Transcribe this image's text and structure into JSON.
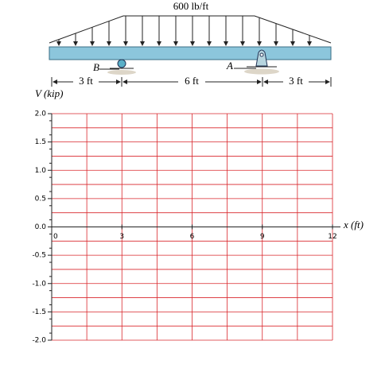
{
  "load": {
    "label": "600 lb/ft"
  },
  "supports": {
    "B": "B",
    "A": "A"
  },
  "dimensions": [
    "3 ft",
    "6 ft",
    "3 ft"
  ],
  "plot": {
    "y_label": "V (kip)",
    "x_label": "x (ft)",
    "xlim": [
      0,
      12
    ],
    "ylim": [
      -2,
      2
    ],
    "xticks": [
      0,
      3,
      6,
      9,
      12
    ],
    "yticks": [
      {
        "value": 2,
        "label": "2.0"
      },
      {
        "value": 1.5,
        "label": "1.5"
      },
      {
        "value": 1,
        "label": "1.0"
      },
      {
        "value": 0.5,
        "label": "0.5"
      },
      {
        "value": 0,
        "label": "0.0"
      },
      {
        "value": -0.5,
        "label": "-0.5"
      },
      {
        "value": -1,
        "label": "-1.0"
      },
      {
        "value": -1.5,
        "label": "-1.5"
      },
      {
        "value": -2,
        "label": "-2.0"
      }
    ],
    "grid": true,
    "grid_color": "#d9262b"
  }
}
